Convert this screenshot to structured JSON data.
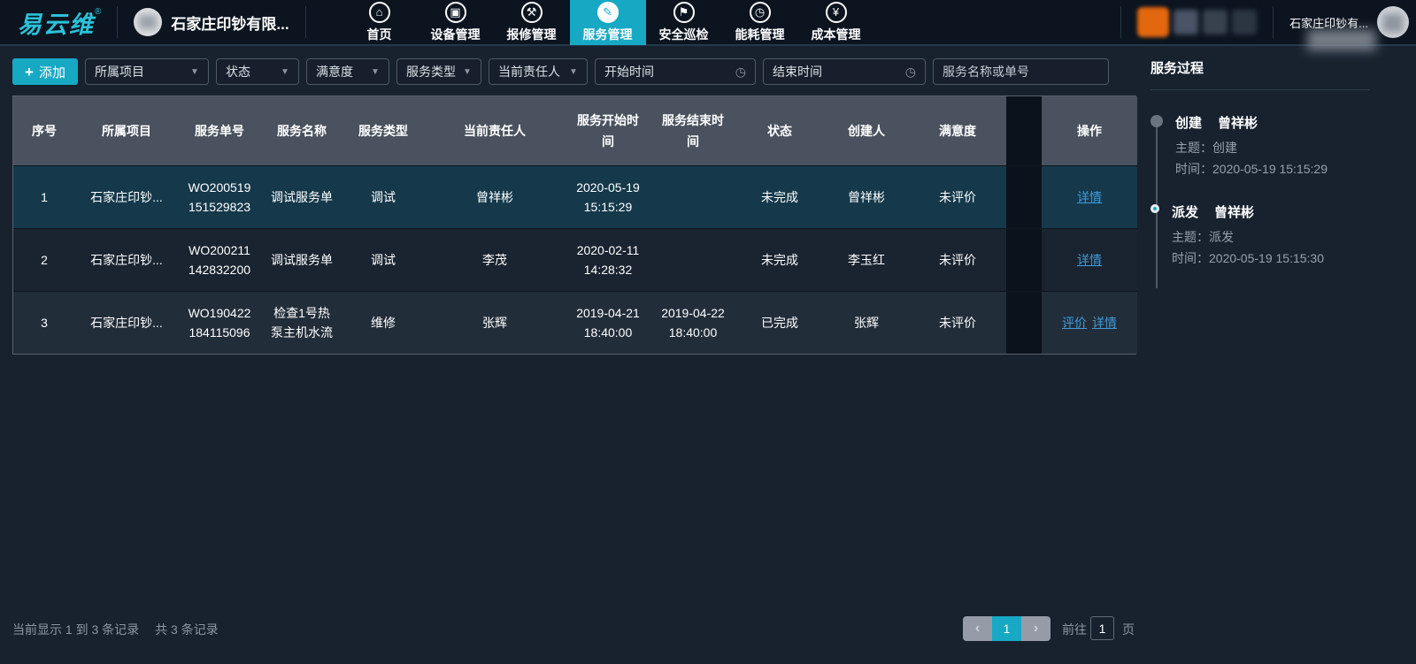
{
  "app": {
    "logo_text": "易云维",
    "trademark": "®"
  },
  "colors": {
    "accent": "#17a9c4",
    "link": "#3f9bd8",
    "selected_row": "#15394b"
  },
  "navbar": {
    "company_name": "石家庄印钞有限...",
    "items": [
      {
        "id": "home",
        "label": "首页",
        "icon": "home-icon",
        "active": false
      },
      {
        "id": "device",
        "label": "设备管理",
        "icon": "device-icon",
        "active": false
      },
      {
        "id": "repair",
        "label": "报修管理",
        "icon": "repair-icon",
        "active": false
      },
      {
        "id": "service",
        "label": "服务管理",
        "icon": "service-icon",
        "active": true
      },
      {
        "id": "safety",
        "label": "安全巡检",
        "icon": "safety-icon",
        "active": false
      },
      {
        "id": "energy",
        "label": "能耗管理",
        "icon": "energy-icon",
        "active": false
      },
      {
        "id": "cost",
        "label": "成本管理",
        "icon": "cost-icon",
        "active": false
      }
    ],
    "right_company_name": "石家庄印钞有..."
  },
  "filters": {
    "add_button": "添加",
    "selects": [
      {
        "id": "project",
        "label": "所属项目"
      },
      {
        "id": "status",
        "label": "状态"
      },
      {
        "id": "satisfaction",
        "label": "满意度"
      },
      {
        "id": "service-type",
        "label": "服务类型"
      },
      {
        "id": "owner",
        "label": "当前责任人"
      }
    ],
    "date_inputs": [
      {
        "id": "start-time",
        "placeholder": "开始时间"
      },
      {
        "id": "end-time",
        "placeholder": "结束时间"
      }
    ],
    "search_placeholder": "服务名称或单号"
  },
  "table": {
    "columns": [
      "序号",
      "所属项目",
      "服务单号",
      "服务名称",
      "服务类型",
      "当前责任人",
      "服务开始时间",
      "服务结束时间",
      "状态",
      "创建人",
      "满意度",
      "操作"
    ],
    "rows": [
      {
        "seq": "1",
        "project": "石家庄印钞...",
        "order_no": "WO200519151529823",
        "name": "调试服务单",
        "type": "调试",
        "owner": "曾祥彬",
        "start": "2020-05-19 15:15:29",
        "end": "",
        "status": "未完成",
        "creator": "曾祥彬",
        "satisfaction": "未评价",
        "actions": [
          "详情"
        ],
        "selected": true
      },
      {
        "seq": "2",
        "project": "石家庄印钞...",
        "order_no": "WO200211142832200",
        "name": "调试服务单",
        "type": "调试",
        "owner": "李茂",
        "start": "2020-02-11 14:28:32",
        "end": "",
        "status": "未完成",
        "creator": "李玉红",
        "satisfaction": "未评价",
        "actions": [
          "详情"
        ],
        "selected": false
      },
      {
        "seq": "3",
        "project": "石家庄印钞...",
        "order_no": "WO190422184115096",
        "name": "检查1号热泵主机水流",
        "type": "维修",
        "owner": "张辉",
        "start": "2019-04-21 18:40:00",
        "end": "2019-04-22 18:40:00",
        "status": "已完成",
        "creator": "张辉",
        "satisfaction": "未评价",
        "actions": [
          "评价",
          "详情"
        ],
        "selected": false
      }
    ]
  },
  "process_panel": {
    "title": "服务过程",
    "events": [
      {
        "action": "创建",
        "person": "曾祥彬",
        "subject": "主题：创建",
        "time": "时间：2020-05-19 15:15:29",
        "highlighted": false
      },
      {
        "action": "派发",
        "person": "曾祥彬",
        "subject": "主题：派发",
        "time": "时间：2020-05-19 15:15:30",
        "highlighted": true
      }
    ]
  },
  "footer": {
    "summary_left": "当前显示 1 到 3 条记录",
    "summary_right": "共 3 条记录",
    "current_page": "1",
    "goto_label": "前往",
    "goto_value": "1",
    "page_unit": "页"
  }
}
